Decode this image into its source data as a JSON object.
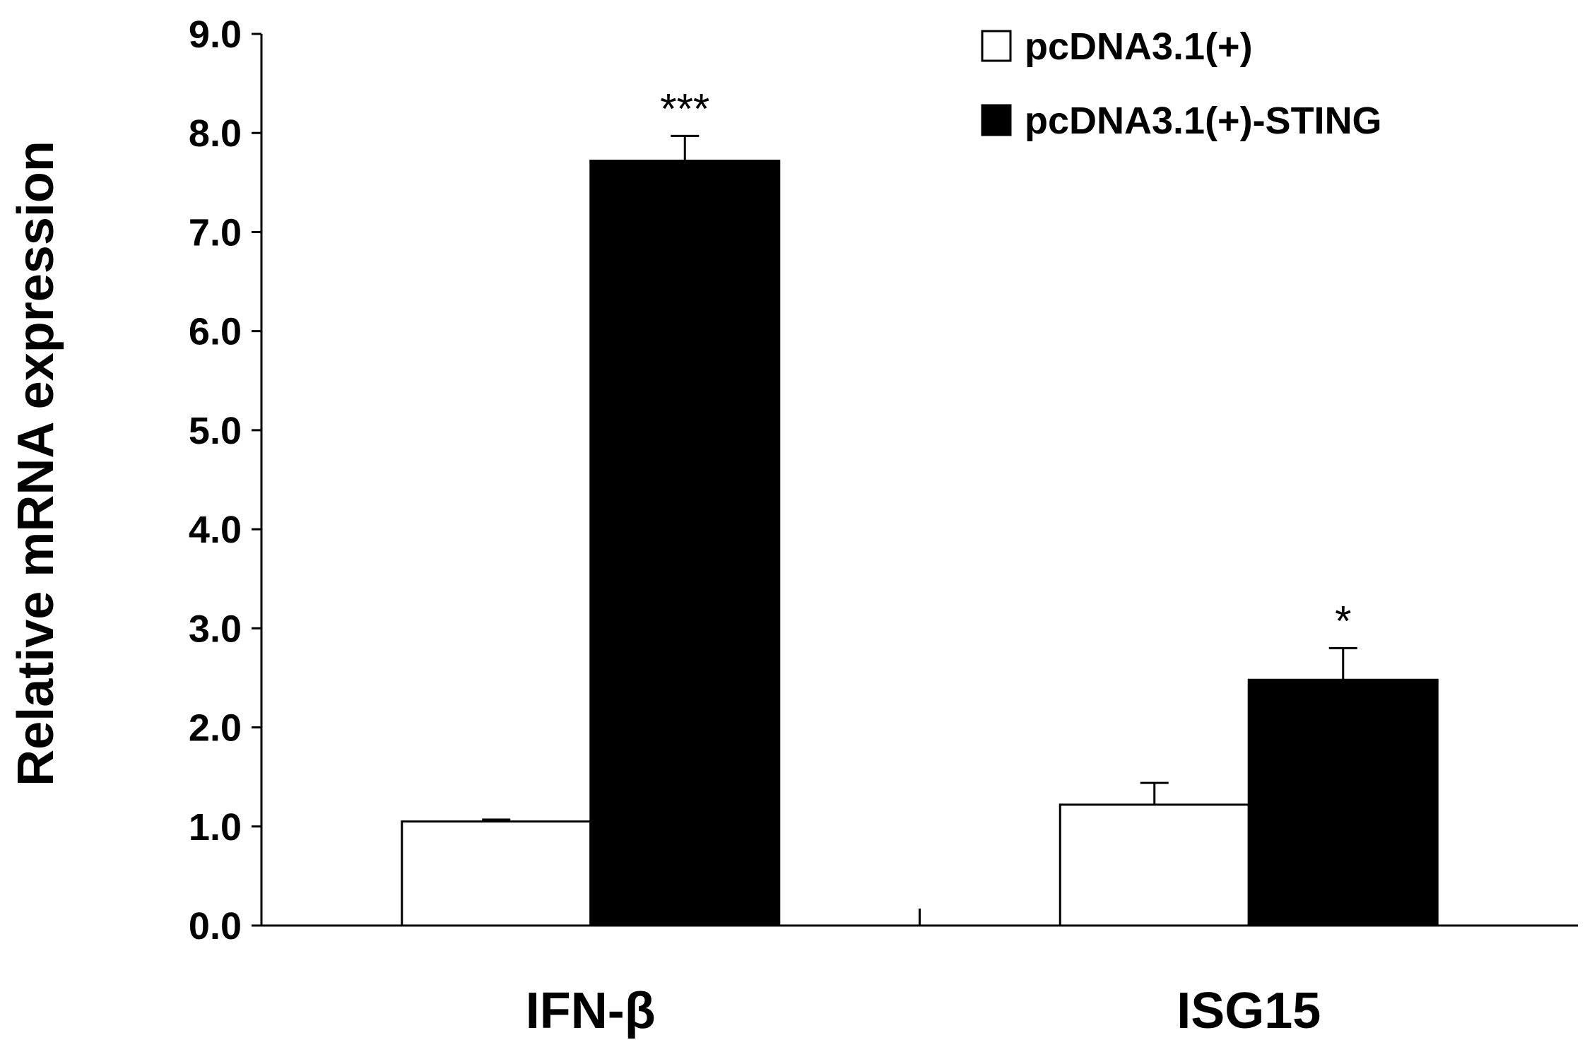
{
  "chart_data": {
    "type": "bar",
    "title": "",
    "xlabel": "",
    "ylabel": "Relative mRNA expression",
    "ylim": [
      0,
      9
    ],
    "yticks": [
      "0.0",
      "1.0",
      "2.0",
      "3.0",
      "4.0",
      "5.0",
      "6.0",
      "7.0",
      "8.0",
      "9.0"
    ],
    "categories": [
      "IFN-β",
      "ISG15"
    ],
    "series": [
      {
        "name": "pcDNA3.1(+)",
        "color": "#ffffff",
        "values": [
          1.05,
          1.22
        ],
        "errors": [
          0.02,
          0.22
        ],
        "significance": [
          "",
          ""
        ]
      },
      {
        "name": "pcDNA3.1(+)-STING",
        "color": "#000000",
        "values": [
          7.72,
          2.48
        ],
        "errors": [
          0.25,
          0.32
        ],
        "significance": [
          "***",
          "*"
        ]
      }
    ],
    "legend": "top-right",
    "grid": false
  }
}
